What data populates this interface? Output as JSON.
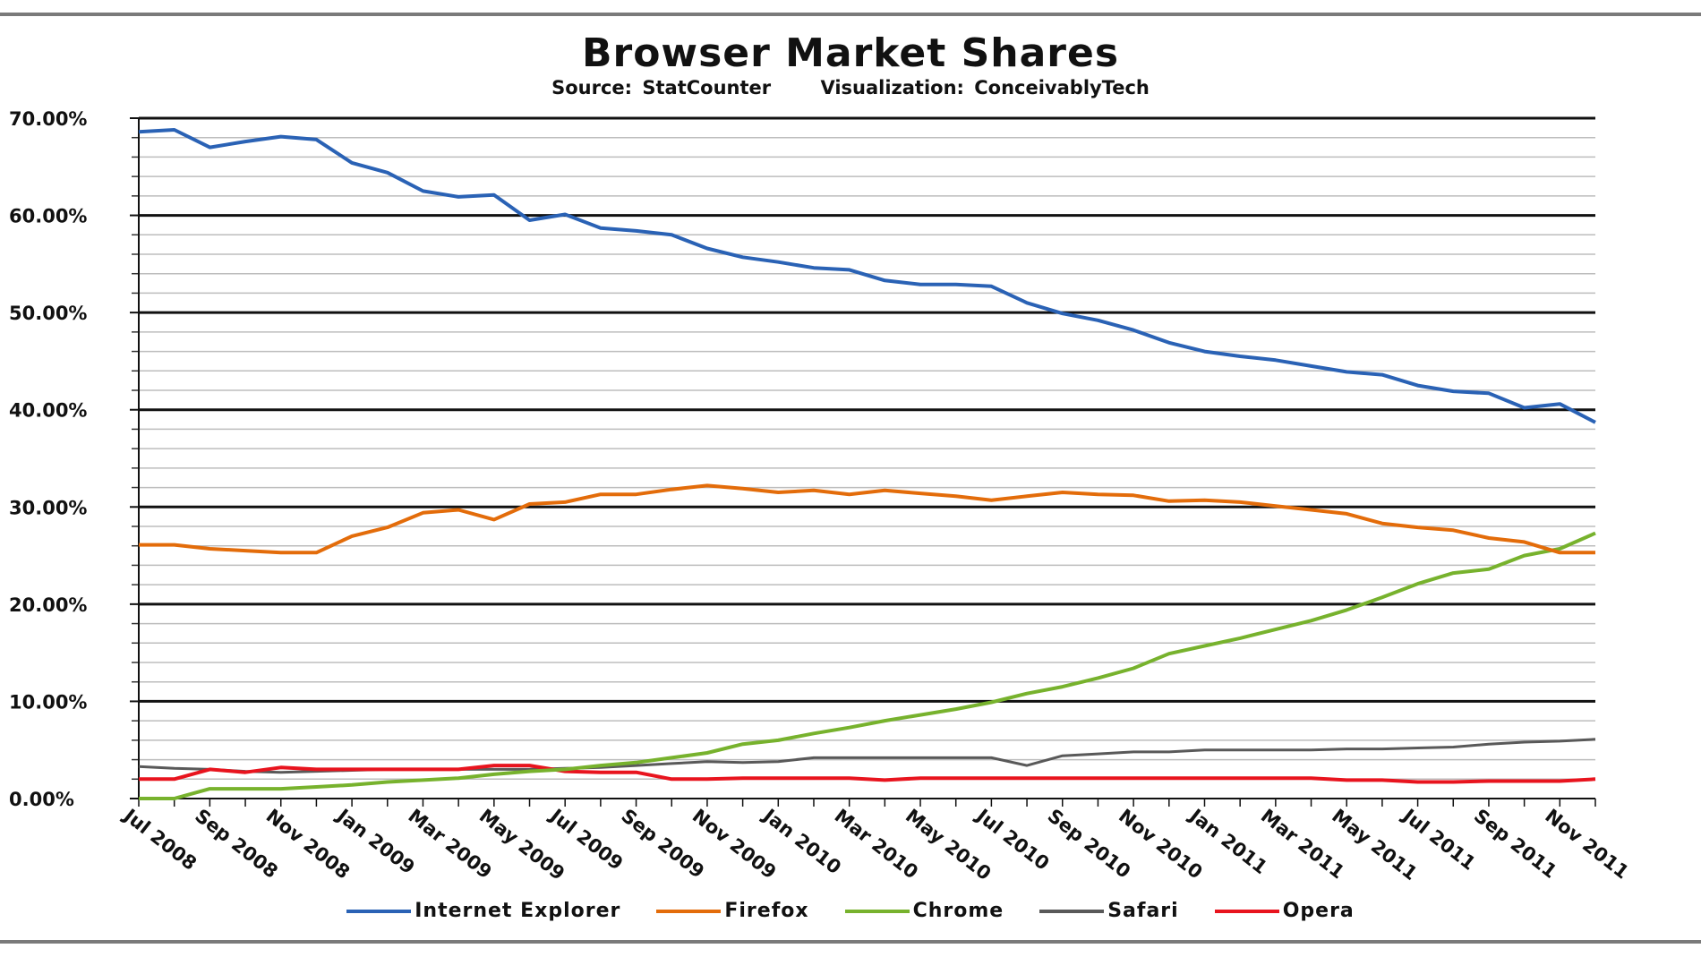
{
  "chart_data": {
    "type": "line",
    "title": "Browser Market Shares",
    "subtitle_source": "Source: StatCounter",
    "subtitle_visualization": "Visualization: ConceivablyTech",
    "xlabel": "",
    "ylabel": "",
    "ylim": [
      0,
      70
    ],
    "y_ticks": [
      "0.00%",
      "10.00%",
      "20.00%",
      "30.00%",
      "40.00%",
      "50.00%",
      "60.00%",
      "70.00%"
    ],
    "x_tick_labels": [
      "Jul 2008",
      "Sep 2008",
      "Nov 2008",
      "Jan 2009",
      "Mar 2009",
      "May 2009",
      "Jul 2009",
      "Sep 2009",
      "Nov 2009",
      "Jan 2010",
      "Mar 2010",
      "May 2010",
      "Jul 2010",
      "Sep 2010",
      "Nov 2010",
      "Jan 2011",
      "Mar 2011",
      "May 2011",
      "Jul 2011",
      "Sep 2011",
      "Nov 2011"
    ],
    "x": [
      "Jul 2008",
      "Aug 2008",
      "Sep 2008",
      "Oct 2008",
      "Nov 2008",
      "Dec 2008",
      "Jan 2009",
      "Feb 2009",
      "Mar 2009",
      "Apr 2009",
      "May 2009",
      "Jun 2009",
      "Jul 2009",
      "Aug 2009",
      "Sep 2009",
      "Oct 2009",
      "Nov 2009",
      "Dec 2009",
      "Jan 2010",
      "Feb 2010",
      "Mar 2010",
      "Apr 2010",
      "May 2010",
      "Jun 2010",
      "Jul 2010",
      "Aug 2010",
      "Sep 2010",
      "Oct 2010",
      "Nov 2010",
      "Dec 2010",
      "Jan 2011",
      "Feb 2011",
      "Mar 2011",
      "Apr 2011",
      "May 2011",
      "Jun 2011",
      "Jul 2011",
      "Aug 2011",
      "Sep 2011",
      "Oct 2011",
      "Nov 2011",
      "Dec 2011"
    ],
    "grid": true,
    "legend_position": "bottom",
    "series": [
      {
        "name": "Internet Explorer",
        "color": "#2a62b5",
        "values": [
          68.6,
          68.8,
          67.0,
          67.6,
          68.1,
          67.8,
          65.4,
          64.4,
          62.5,
          61.9,
          62.1,
          59.5,
          60.1,
          58.7,
          58.4,
          58.0,
          56.6,
          55.7,
          55.2,
          54.6,
          54.4,
          53.3,
          52.9,
          52.9,
          52.7,
          51.0,
          49.9,
          49.2,
          48.2,
          46.9,
          46.0,
          45.5,
          45.1,
          44.5,
          43.9,
          43.6,
          42.5,
          41.9,
          41.7,
          40.2,
          40.6,
          38.7
        ]
      },
      {
        "name": "Firefox",
        "color": "#e36c0a",
        "values": [
          26.1,
          26.1,
          25.7,
          25.5,
          25.3,
          25.3,
          27.0,
          27.9,
          29.4,
          29.7,
          28.7,
          30.3,
          30.5,
          31.3,
          31.3,
          31.8,
          32.2,
          31.9,
          31.5,
          31.7,
          31.3,
          31.7,
          31.4,
          31.1,
          30.7,
          31.1,
          31.5,
          31.3,
          31.2,
          30.6,
          30.7,
          30.5,
          30.1,
          29.7,
          29.3,
          28.3,
          27.9,
          27.6,
          26.8,
          26.4,
          25.3,
          25.3
        ]
      },
      {
        "name": "Chrome",
        "color": "#77b22d",
        "values": [
          0.0,
          0.0,
          1.0,
          1.0,
          1.0,
          1.2,
          1.4,
          1.7,
          1.9,
          2.1,
          2.5,
          2.8,
          3.0,
          3.4,
          3.7,
          4.2,
          4.7,
          5.6,
          6.0,
          6.7,
          7.3,
          8.0,
          8.6,
          9.2,
          9.9,
          10.8,
          11.5,
          12.4,
          13.4,
          14.9,
          15.7,
          16.5,
          17.4,
          18.3,
          19.4,
          20.7,
          22.1,
          23.2,
          23.6,
          25.0,
          25.7,
          27.3
        ]
      },
      {
        "name": "Safari",
        "color": "#595959",
        "values": [
          3.3,
          3.1,
          3.0,
          2.8,
          2.7,
          2.8,
          2.9,
          3.0,
          3.0,
          3.0,
          3.0,
          3.0,
          3.1,
          3.2,
          3.4,
          3.6,
          3.8,
          3.7,
          3.8,
          4.2,
          4.2,
          4.2,
          4.2,
          4.2,
          4.2,
          3.4,
          4.4,
          4.6,
          4.8,
          4.8,
          5.0,
          5.0,
          5.0,
          5.0,
          5.1,
          5.1,
          5.2,
          5.3,
          5.6,
          5.8,
          5.9,
          6.1
        ]
      },
      {
        "name": "Opera",
        "color": "#e8141e",
        "values": [
          2.0,
          2.0,
          3.0,
          2.7,
          3.2,
          3.0,
          3.0,
          3.0,
          3.0,
          3.0,
          3.4,
          3.4,
          2.8,
          2.7,
          2.7,
          2.0,
          2.0,
          2.1,
          2.1,
          2.1,
          2.1,
          1.9,
          2.1,
          2.1,
          2.1,
          2.1,
          2.1,
          2.1,
          2.1,
          2.1,
          2.1,
          2.1,
          2.1,
          2.1,
          1.9,
          1.9,
          1.7,
          1.7,
          1.8,
          1.8,
          1.8,
          2.0
        ]
      }
    ]
  }
}
